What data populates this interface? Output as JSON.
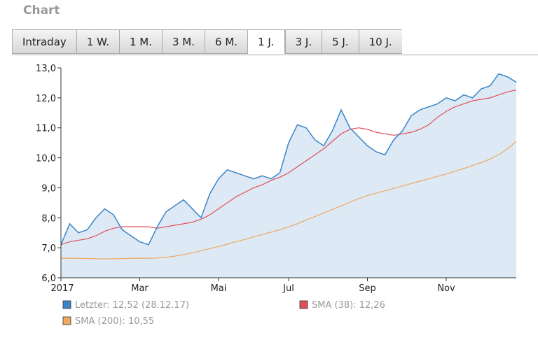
{
  "header": {
    "title": "Chart"
  },
  "tabs": {
    "items": [
      "Intraday",
      "1 W.",
      "1 M.",
      "3 M.",
      "6 M.",
      "1 J.",
      "3 J.",
      "5 J.",
      "10 J."
    ],
    "active": "1 J."
  },
  "chart_data": {
    "type": "line",
    "categories": [
      "2017",
      null,
      null,
      null,
      null,
      null,
      null,
      null,
      null,
      "Mar",
      null,
      null,
      null,
      null,
      null,
      null,
      null,
      null,
      "Mai",
      null,
      null,
      null,
      null,
      null,
      null,
      null,
      "Jul",
      null,
      null,
      null,
      null,
      null,
      null,
      null,
      null,
      "Sep",
      null,
      null,
      null,
      null,
      null,
      null,
      null,
      null,
      "Nov",
      null,
      null,
      null,
      null,
      null,
      null,
      null,
      null
    ],
    "ylim": [
      6,
      13
    ],
    "yticks": [
      {
        "value": 6,
        "label": "6,0"
      },
      {
        "value": 7,
        "label": "7,0"
      },
      {
        "value": 8,
        "label": "8,0"
      },
      {
        "value": 9,
        "label": "9,0"
      },
      {
        "value": 10,
        "label": "10,0"
      },
      {
        "value": 11,
        "label": "11,0"
      },
      {
        "value": 12,
        "label": "12,0"
      },
      {
        "value": 13,
        "label": "13,0"
      }
    ],
    "series": [
      {
        "name": "Letzter: 12,52 (28.12.17)",
        "color": "#3a86c8",
        "fill": "#dde9f5",
        "values": [
          7.1,
          7.8,
          7.5,
          7.6,
          8.0,
          8.3,
          8.1,
          7.6,
          7.4,
          7.2,
          7.1,
          7.7,
          8.2,
          8.4,
          8.6,
          8.3,
          8.0,
          8.8,
          9.3,
          9.6,
          9.5,
          9.4,
          9.3,
          9.4,
          9.3,
          9.5,
          10.5,
          11.1,
          11.0,
          10.6,
          10.4,
          10.9,
          11.6,
          11.0,
          10.7,
          10.4,
          10.2,
          10.1,
          10.6,
          10.9,
          11.4,
          11.6,
          11.7,
          11.8,
          12.0,
          11.9,
          12.1,
          12.0,
          12.3,
          12.4,
          12.8,
          12.7,
          12.52
        ]
      },
      {
        "name": "SMA (38): 12,26",
        "color": "#e0505a",
        "values": [
          7.1,
          7.2,
          7.25,
          7.3,
          7.4,
          7.55,
          7.65,
          7.7,
          7.7,
          7.7,
          7.7,
          7.65,
          7.7,
          7.75,
          7.8,
          7.85,
          7.95,
          8.1,
          8.3,
          8.5,
          8.7,
          8.85,
          9.0,
          9.1,
          9.25,
          9.35,
          9.5,
          9.7,
          9.9,
          10.1,
          10.3,
          10.55,
          10.8,
          10.95,
          11.0,
          10.95,
          10.85,
          10.8,
          10.75,
          10.8,
          10.85,
          10.95,
          11.1,
          11.35,
          11.55,
          11.7,
          11.8,
          11.9,
          11.95,
          12.0,
          12.1,
          12.2,
          12.26
        ]
      },
      {
        "name": "SMA (200): 10,55",
        "color": "#f0a860",
        "values": [
          6.65,
          6.65,
          6.65,
          6.64,
          6.63,
          6.63,
          6.63,
          6.64,
          6.65,
          6.65,
          6.65,
          6.66,
          6.68,
          6.72,
          6.77,
          6.83,
          6.9,
          6.97,
          7.04,
          7.12,
          7.2,
          7.28,
          7.36,
          7.44,
          7.52,
          7.6,
          7.7,
          7.8,
          7.92,
          8.04,
          8.16,
          8.28,
          8.4,
          8.52,
          8.64,
          8.74,
          8.82,
          8.9,
          8.98,
          9.06,
          9.14,
          9.22,
          9.3,
          9.38,
          9.46,
          9.55,
          9.64,
          9.74,
          9.84,
          9.96,
          10.1,
          10.3,
          10.55
        ]
      }
    ]
  }
}
